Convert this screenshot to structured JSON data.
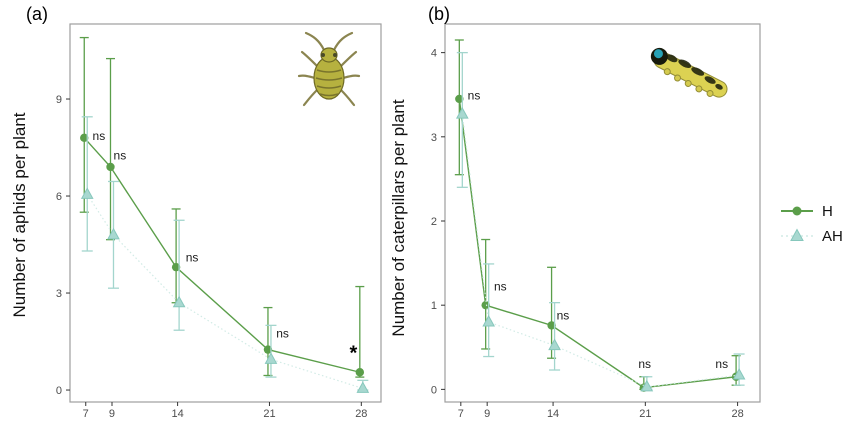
{
  "chart_data": {
    "type": "line",
    "panels": [
      {
        "label": "(a)",
        "ylabel": "Number of aphids per plant",
        "xlabel": "",
        "insect": "aphid",
        "xticks": [
          7,
          9,
          14,
          21,
          28
        ],
        "yticks": [
          0,
          3,
          6,
          9
        ],
        "xlim": [
          5.8,
          29.5
        ],
        "ylim": [
          -0.37,
          11.32
        ],
        "series": [
          {
            "name": "H",
            "marker": "circle",
            "line": "solid",
            "color": "#5b9e4a",
            "line_color": "#5b9e4a",
            "err_color": "#5b9e4a",
            "x": [
              7,
              9,
              14,
              21,
              28
            ],
            "y": [
              7.8,
              6.9,
              3.8,
              1.25,
              0.55
            ],
            "err_low": [
              5.5,
              4.65,
              2.7,
              0.45,
              0.4
            ],
            "err_high": [
              10.9,
              10.25,
              5.6,
              2.55,
              3.2
            ]
          },
          {
            "name": "AH",
            "marker": "triangle",
            "line": "dotted",
            "color": "#a8d8d0",
            "marker_stroke": "#86c7bc",
            "line_color": "#d2ebe6",
            "err_color": "#a3d5cd",
            "x": [
              7,
              9,
              14,
              21,
              28
            ],
            "y": [
              6.05,
              4.8,
              2.7,
              0.95,
              0.05
            ],
            "err_low": [
              4.3,
              3.15,
              1.85,
              0.4,
              0.0
            ],
            "err_high": [
              8.45,
              6.45,
              5.25,
              2.0,
              0.3
            ]
          }
        ],
        "significance": [
          {
            "x": 8.0,
            "y": 7.85,
            "text": "ns"
          },
          {
            "x": 9.6,
            "y": 7.25,
            "text": "ns"
          },
          {
            "x": 15.1,
            "y": 4.1,
            "text": "ns"
          },
          {
            "x": 22.0,
            "y": 1.75,
            "text": "ns"
          },
          {
            "x": 27.4,
            "y": 1.22,
            "text": "*"
          }
        ]
      },
      {
        "label": "(b)",
        "ylabel": "Number of caterpillars per plant",
        "xlabel": "",
        "insect": "caterpillar",
        "xticks": [
          7,
          9,
          14,
          21,
          28
        ],
        "yticks": [
          0,
          1,
          2,
          3,
          4
        ],
        "xlim": [
          5.8,
          29.7
        ],
        "ylim": [
          -0.15,
          4.34
        ],
        "series": [
          {
            "name": "H",
            "marker": "circle",
            "line": "solid",
            "color": "#5b9e4a",
            "line_color": "#5b9e4a",
            "err_color": "#5b9e4a",
            "x": [
              7,
              9,
              14,
              21,
              28
            ],
            "y": [
              3.45,
              1.0,
              0.76,
              0.02,
              0.15
            ],
            "err_low": [
              2.55,
              0.48,
              0.37,
              0.0,
              0.05
            ],
            "err_high": [
              4.15,
              1.78,
              1.45,
              0.15,
              0.4
            ]
          },
          {
            "name": "AH",
            "marker": "triangle",
            "line": "dotted",
            "color": "#a8d8d0",
            "marker_stroke": "#86c7bc",
            "line_color": "#d2ebe6",
            "err_color": "#a3d5cd",
            "x": [
              7,
              9,
              14,
              21,
              28
            ],
            "y": [
              3.27,
              0.8,
              0.52,
              0.03,
              0.17
            ],
            "err_low": [
              2.4,
              0.39,
              0.23,
              0.0,
              0.05
            ],
            "err_high": [
              4.0,
              1.49,
              1.03,
              0.15,
              0.42
            ]
          }
        ],
        "significance": [
          {
            "x": 8.0,
            "y": 3.49,
            "text": "ns"
          },
          {
            "x": 10.0,
            "y": 1.22,
            "text": "ns"
          },
          {
            "x": 14.75,
            "y": 0.88,
            "text": "ns"
          },
          {
            "x": 20.95,
            "y": 0.3,
            "text": "ns"
          },
          {
            "x": 26.8,
            "y": 0.3,
            "text": "ns"
          }
        ]
      }
    ],
    "legend": {
      "items": [
        {
          "label": "H",
          "marker": "circle",
          "line": "solid",
          "color": "#5b9e4a"
        },
        {
          "label": "AH",
          "marker": "triangle",
          "line": "dotted",
          "color": "#a8d8d0",
          "marker_stroke": "#86c7bc",
          "line_color": "#d2ebe6"
        }
      ]
    },
    "styles": {
      "background": "#ffffff",
      "panel_border": "#9e9e9e",
      "tick_mark": "#333333",
      "tick_label": "#4d4d4d",
      "significance_color": "#1a1a1a"
    }
  }
}
